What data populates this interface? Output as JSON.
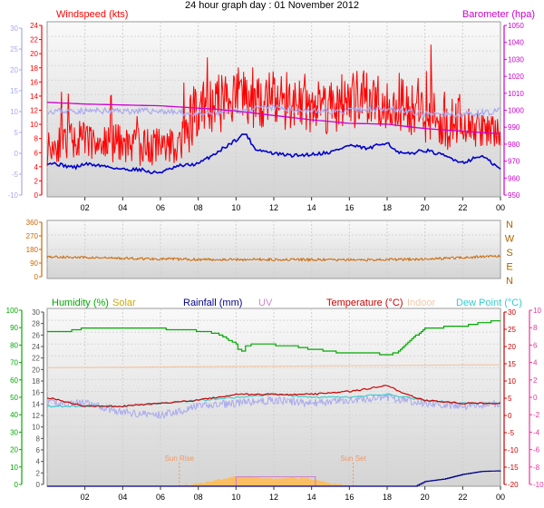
{
  "title": "24 hour graph day : 01 November 2012",
  "time_ticks": [
    "02",
    "04",
    "06",
    "08",
    "10",
    "12",
    "14",
    "16",
    "18",
    "20",
    "22",
    "00"
  ],
  "colors": {
    "windspeed": "#ff0000",
    "wind_dark": "#0000cc",
    "baro": "#cc00cc",
    "lavender": "#a9a9ee",
    "direction": "#cc6600",
    "humidity": "#00aa00",
    "solar": "#ccaa00",
    "rainfall": "#000088",
    "uv": "#cc88cc",
    "temperature": "#cc0000",
    "indoor": "#f2c8a8",
    "dewpoint": "#33cccc",
    "sun_fill": "#ffbb55",
    "sun_marker": "#ee9966"
  },
  "chart_data": [
    {
      "type": "line",
      "labels": {
        "left_title": "Windspeed (kts)",
        "right_title": "Barometer (hpa)"
      },
      "axes": {
        "outer_left": [
          "-10",
          "-5",
          "0",
          "5",
          "10",
          "15",
          "20",
          "25",
          "30"
        ],
        "windspeed": [
          "0",
          "2",
          "4",
          "6",
          "8",
          "10",
          "12",
          "14",
          "16",
          "18",
          "20",
          "22",
          "24"
        ],
        "barometer": [
          "950",
          "960",
          "970",
          "980",
          "990",
          "1000",
          "1010",
          "1020",
          "1030",
          "1040",
          "1050"
        ]
      },
      "ylim_windspeed": [
        0,
        25.5
      ],
      "ylim_barometer": [
        950,
        1050
      ],
      "series": [
        {
          "name": "Windspeed (kts)",
          "style": "noisy red gust trace",
          "x": [
            0,
            1,
            2,
            3,
            4,
            5,
            6,
            7,
            8,
            9,
            10,
            11,
            12,
            13,
            14,
            15,
            16,
            17,
            18,
            19,
            20,
            21,
            22,
            23,
            24
          ],
          "values": [
            7,
            8,
            8,
            7.5,
            7.5,
            7,
            7,
            7.5,
            12.5,
            13,
            14.5,
            14,
            13.5,
            13.5,
            13,
            13,
            13.5,
            13.5,
            13.5,
            13,
            12,
            11,
            10,
            9.5,
            9
          ]
        },
        {
          "name": "Barometer (hpa)",
          "style": "smooth magenta line",
          "x": [
            0,
            2,
            4,
            6,
            7.5,
            9,
            10,
            12,
            14,
            16,
            18,
            20,
            22,
            24
          ],
          "values": [
            1004,
            1003,
            1002.5,
            1002,
            1001,
            1000,
            999,
            996.5,
            994,
            992,
            991.5,
            989,
            987.5,
            986
          ]
        },
        {
          "style": "lavender trace",
          "x": [
            0,
            2,
            4,
            6,
            8,
            10,
            12,
            14,
            16,
            18,
            20,
            22,
            24
          ],
          "values": [
            12.5,
            12.5,
            12.5,
            12.5,
            12,
            12.5,
            13,
            12.5,
            12.5,
            13,
            12,
            12,
            12.5
          ]
        },
        {
          "style": "dark blue line",
          "x": [
            0,
            0.5,
            1,
            1.5,
            2,
            3,
            4,
            5,
            5.5,
            6,
            6.5,
            7,
            8,
            9,
            10,
            10.5,
            11,
            12,
            13,
            14,
            15,
            16,
            17,
            17.5,
            18,
            18.5,
            19,
            20,
            21,
            22,
            23,
            23.5,
            24
          ],
          "values": [
            5,
            4.8,
            4.5,
            4.3,
            4.8,
            4.5,
            4,
            4,
            3.5,
            3.6,
            4,
            4.5,
            4.8,
            6.5,
            8.3,
            9.3,
            7,
            6.3,
            6,
            6.2,
            6.5,
            7.5,
            7,
            7.5,
            8,
            6.5,
            6.2,
            6.8,
            6,
            5,
            6,
            5,
            4
          ]
        }
      ]
    },
    {
      "type": "line",
      "labels": {
        "compass": [
          "N",
          "W",
          "S",
          "E",
          "N"
        ]
      },
      "axes": {
        "direction": [
          "360",
          "270",
          "180",
          "90",
          "0"
        ]
      },
      "ylim": [
        0,
        360
      ],
      "series": [
        {
          "name": "Wind direction",
          "style": "orange trace",
          "x": [
            0,
            4,
            8,
            12,
            16,
            20,
            24
          ],
          "values": [
            135,
            125,
            118,
            118,
            115,
            120,
            140
          ]
        }
      ]
    },
    {
      "type": "line",
      "legend": [
        "Humidity (%)",
        "Solar",
        "Rainfall (mm)",
        "UV",
        "Temperature (°C)",
        "Indoor",
        "Dew Point (°C)"
      ],
      "axes": {
        "humidity": [
          "0",
          "10",
          "20",
          "30",
          "40",
          "50",
          "60",
          "70",
          "80",
          "90",
          "100"
        ],
        "temperature_c": [
          "0",
          "2",
          "4",
          "6",
          "8",
          "10",
          "12",
          "14",
          "16",
          "18",
          "20",
          "22",
          "24",
          "26",
          "28",
          "30"
        ],
        "right_outer": [
          "30",
          "25",
          "20",
          "15",
          "10",
          "5",
          "0",
          "-5",
          "-10",
          "-15",
          "-20"
        ],
        "far_right": [
          "-10",
          "-8",
          "-6",
          "-4",
          "-2",
          "0",
          "2",
          "4",
          "6",
          "8",
          "10"
        ]
      },
      "annotations": {
        "sunrise": "Sun Rise",
        "sunset": "Sun Set"
      },
      "series": [
        {
          "name": "Humidity (%)",
          "style": "green step line",
          "x": [
            0,
            1,
            2,
            5,
            7.5,
            9,
            10,
            10.5,
            11,
            13,
            14,
            15,
            15.5,
            17,
            18,
            18.5,
            19,
            20,
            22,
            23,
            24
          ],
          "values": [
            87,
            87,
            89,
            89,
            88,
            86,
            80,
            79,
            80,
            79,
            77,
            76,
            75,
            75,
            74,
            75,
            80,
            89,
            90,
            92,
            93
          ]
        },
        {
          "name": "Temperature (°C)",
          "style": "dark red line",
          "x": [
            0,
            2,
            4,
            6,
            8,
            10,
            12,
            14,
            16,
            17,
            18,
            19,
            20,
            22,
            24
          ],
          "values": [
            15,
            13.5,
            13.5,
            14,
            14.5,
            15.5,
            15.5,
            15.5,
            16,
            16.5,
            17,
            15.5,
            14.5,
            14,
            14
          ]
        },
        {
          "name": "Indoor",
          "style": "faint salmon line",
          "x": [
            0,
            24
          ],
          "values": [
            20,
            20.5
          ]
        },
        {
          "name": "Dew Point (°C)",
          "style": "cyan line",
          "x": [
            0,
            2,
            4,
            6,
            8,
            10,
            12,
            14,
            16,
            18,
            20,
            22,
            24
          ],
          "values": [
            13.5,
            13.5,
            13.5,
            14,
            14.5,
            15,
            15.5,
            15,
            15,
            15.5,
            14.5,
            14,
            14
          ]
        },
        {
          "style": "lavender trace",
          "x": [
            0,
            2,
            4,
            6,
            8,
            10,
            12,
            14,
            16,
            18,
            20,
            22,
            24
          ],
          "values": [
            14,
            14,
            12.5,
            12,
            13.5,
            14,
            14.5,
            14,
            14.5,
            15,
            14,
            13.5,
            14
          ]
        },
        {
          "name": "Rainfall (mm)",
          "style": "navy step line",
          "x": [
            0,
            19.5,
            20,
            21,
            22,
            23,
            24
          ],
          "values": [
            0,
            0,
            0.8,
            1.2,
            2,
            2.5,
            2.6
          ]
        },
        {
          "name": "Solar",
          "style": "orange area",
          "x": [
            7,
            8,
            9,
            10,
            11,
            12,
            13,
            14,
            15,
            16.2
          ],
          "values": [
            0,
            0.5,
            1,
            1.6,
            1.6,
            1.2,
            1.5,
            1.2,
            0.5,
            0
          ]
        }
      ]
    }
  ]
}
